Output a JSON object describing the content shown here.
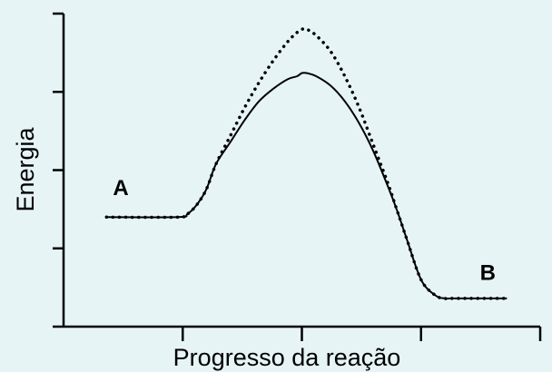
{
  "chart_data": {
    "type": "line",
    "title": "",
    "xlabel": "Progresso da reação",
    "ylabel": "Energia",
    "xlim": [
      0,
      100
    ],
    "ylim": [
      0,
      100
    ],
    "x_tick_count": 4,
    "y_tick_count": 4,
    "grid": false,
    "tick_labels_shown": false,
    "series": [
      {
        "style": "solid",
        "color": "#000000",
        "x": [
          9,
          24,
          26,
          28,
          30,
          32,
          35,
          38,
          41,
          44,
          47,
          49,
          50,
          51,
          53,
          56,
          59,
          62,
          65,
          68,
          70,
          72,
          75,
          78,
          80,
          82,
          93
        ],
        "y": [
          35,
          35,
          36,
          39,
          44,
          52,
          59,
          66,
          72,
          76,
          79,
          80,
          81,
          81,
          80,
          77,
          72,
          65,
          56,
          45,
          37,
          28,
          15,
          10,
          9,
          9,
          9
        ]
      },
      {
        "style": "dotted",
        "color": "#000000",
        "x": [
          9,
          24,
          26,
          28,
          30,
          32,
          35,
          38,
          41,
          44,
          47,
          49,
          50,
          51,
          53,
          56,
          59,
          62,
          65,
          68,
          70,
          72,
          75,
          78,
          80,
          82,
          93
        ],
        "y": [
          35,
          35,
          36,
          39,
          44,
          52,
          61,
          70,
          78,
          85,
          91,
          94,
          95,
          95,
          93,
          88,
          80,
          70,
          58,
          46,
          37,
          28,
          15,
          10,
          9,
          9,
          9
        ]
      }
    ],
    "annotations": [
      {
        "text": "A",
        "x": 12,
        "y": 42
      },
      {
        "text": "B",
        "x": 89,
        "y": 15
      }
    ]
  }
}
